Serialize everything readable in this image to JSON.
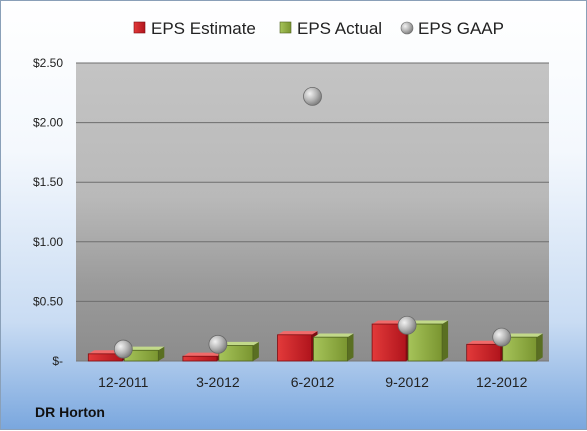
{
  "chart_data": {
    "type": "bar",
    "categories": [
      "12-2011",
      "3-2012",
      "6-2012",
      "9-2012",
      "12-2012"
    ],
    "series": [
      {
        "name": "EPS Estimate",
        "values": [
          0.06,
          0.04,
          0.22,
          0.31,
          0.14
        ],
        "color": "#c0202a"
      },
      {
        "name": "EPS Actual",
        "values": [
          0.09,
          0.13,
          0.2,
          0.31,
          0.2
        ],
        "color": "#8aa83a"
      },
      {
        "name": "EPS GAAP",
        "values": [
          0.1,
          0.14,
          2.22,
          0.3,
          0.2
        ],
        "color": "#a8a8a8"
      }
    ],
    "y_ticks": [
      "$-",
      "$0.50",
      "$1.00",
      "$1.50",
      "$2.00",
      "$2.50"
    ],
    "ylim": [
      0,
      2.5
    ],
    "legend_position": "top",
    "grid": true,
    "footer_label": "DR Horton"
  }
}
